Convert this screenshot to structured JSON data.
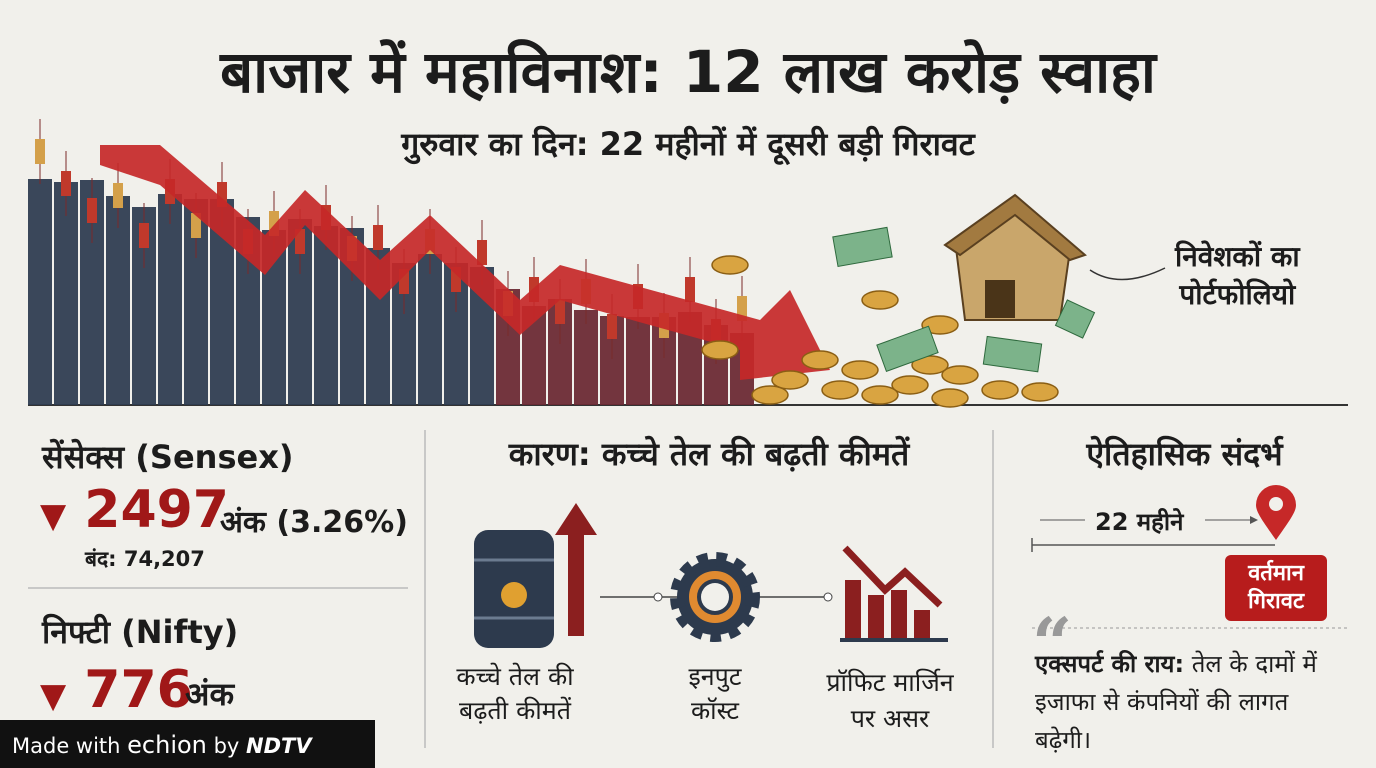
{
  "header": {
    "title": "बाजार में महाविनाश: 12 लाख करोड़ स्वाहा",
    "subtitle": "गुरुवार का दिन: 22 महीनों में दूसरी बड़ी गिरावट"
  },
  "hero": {
    "label_lines": [
      "निवेशकों का",
      "पोर्टफोलियो"
    ]
  },
  "sensex": {
    "name": "सेंसेक्स (Sensex)",
    "change": "2497",
    "unit": "अंक (3.26%)",
    "close": "बंद: 74,207"
  },
  "nifty": {
    "name": "निफ्टी (Nifty)",
    "change": "776",
    "unit": "अंक"
  },
  "reason": {
    "heading": "कारण: कच्चे तेल की बढ़ती कीमतें",
    "steps": [
      {
        "lines": [
          "कच्चे तेल की",
          "बढ़ती कीमतें"
        ]
      },
      {
        "lines": [
          "इनपुट",
          "कॉस्ट"
        ]
      },
      {
        "lines": [
          "प्रॉफिट मार्जिन",
          "पर असर"
        ]
      }
    ]
  },
  "history": {
    "heading": "ऐतिहासिक संदर्भ",
    "span": "22 महीने",
    "marker_lines": [
      "वर्तमान",
      "गिरावट"
    ],
    "expert_label": "एक्सपर्ट की राय:",
    "expert_text": "तेल के दामों में इजाफा से कंपनियों की लागत बढ़ेगी।"
  },
  "footer": {
    "made_with": "Made with",
    "brand": "echion",
    "by": "by",
    "partner": "NDTV"
  }
}
